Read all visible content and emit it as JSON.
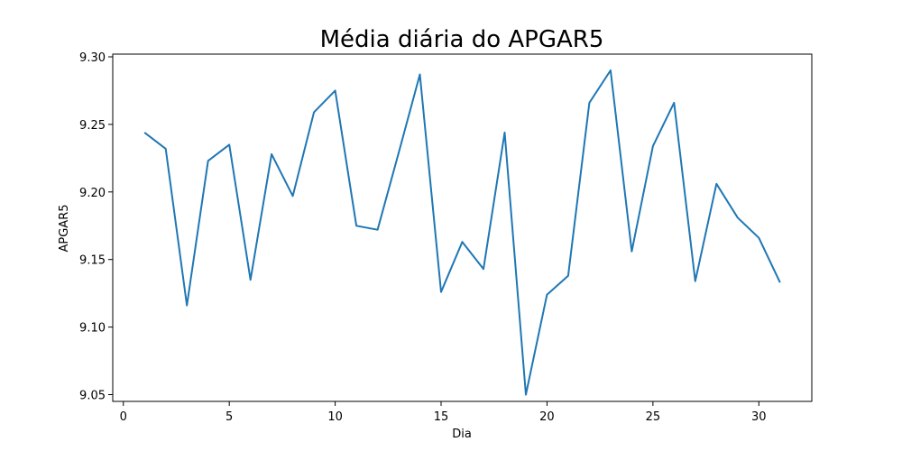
{
  "chart_data": {
    "type": "line",
    "title": "Média diária do APGAR5",
    "xlabel": "Dia",
    "ylabel": "APGAR5",
    "xlim": [
      -0.5,
      32.5
    ],
    "ylim": [
      9.045,
      9.302
    ],
    "xticks": [
      0,
      5,
      10,
      15,
      20,
      25,
      30
    ],
    "yticks": [
      9.05,
      9.1,
      9.15,
      9.2,
      9.25,
      9.3
    ],
    "xtick_labels": [
      "0",
      "5",
      "10",
      "15",
      "20",
      "25",
      "30"
    ],
    "ytick_labels": [
      "9.05",
      "9.10",
      "9.15",
      "9.20",
      "9.25",
      "9.30"
    ],
    "grid": false,
    "color": "#1f77b4",
    "series": [
      {
        "x": [
          1,
          2,
          3,
          4,
          5,
          6,
          7,
          8,
          9,
          10,
          11,
          12,
          13,
          14,
          15,
          16,
          17,
          18,
          19,
          20,
          21,
          22,
          23,
          24,
          25,
          26,
          27,
          28,
          29,
          30,
          31
        ],
        "values": [
          9.244,
          9.232,
          9.116,
          9.223,
          9.235,
          9.135,
          9.228,
          9.197,
          9.259,
          9.275,
          9.175,
          9.172,
          9.229,
          9.287,
          9.126,
          9.163,
          9.143,
          9.244,
          9.05,
          9.124,
          9.138,
          9.266,
          9.29,
          9.156,
          9.234,
          9.266,
          9.134,
          9.206,
          9.181,
          9.166,
          9.133
        ]
      }
    ]
  }
}
